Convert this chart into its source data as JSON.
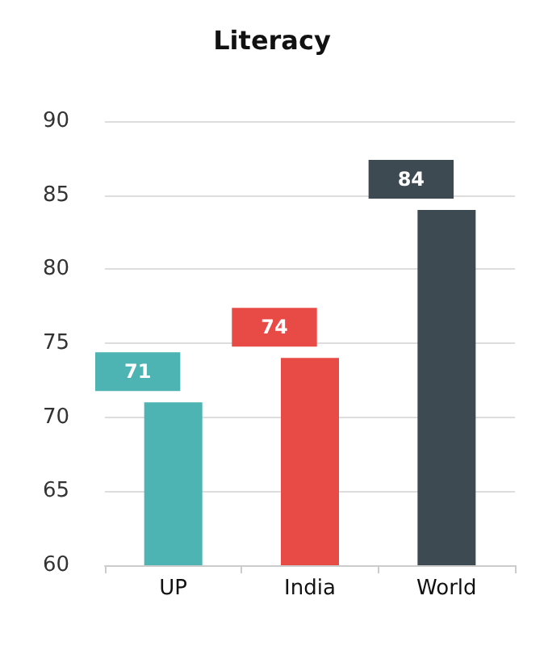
{
  "chart_data": {
    "type": "bar",
    "title": "Literacy",
    "categories": [
      "UP",
      "India",
      "World"
    ],
    "values": [
      71,
      74,
      84
    ],
    "colors": [
      "#4db3b3",
      "#e84a45",
      "#3d4a52"
    ],
    "ylim": [
      60,
      90
    ],
    "yticks": [
      60,
      65,
      70,
      75,
      80,
      85,
      90
    ],
    "grid": "y",
    "data_labels": true
  }
}
